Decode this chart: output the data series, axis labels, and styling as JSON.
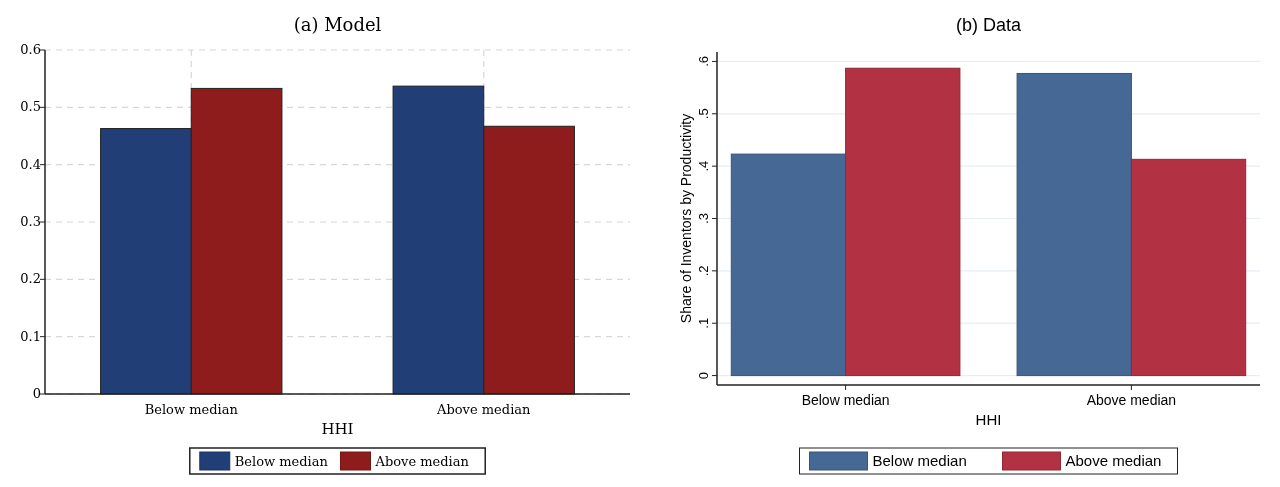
{
  "chart_data": [
    {
      "type": "bar",
      "title": "(a) Model",
      "xlabel": "HHI",
      "categories": [
        "Below median",
        "Above median"
      ],
      "series": [
        {
          "name": "Below median",
          "color": "#213f76",
          "values": [
            0.463,
            0.537
          ]
        },
        {
          "name": "Above median",
          "color": "#8f1c1d",
          "values": [
            0.533,
            0.467
          ]
        }
      ],
      "ylim": [
        0,
        0.6
      ],
      "yticks": [
        {
          "value": 0,
          "label": "0"
        },
        {
          "value": 0.1,
          "label": "0.1"
        },
        {
          "value": 0.2,
          "label": "0.2"
        },
        {
          "value": 0.3,
          "label": "0.3"
        },
        {
          "value": 0.4,
          "label": "0.4"
        },
        {
          "value": 0.5,
          "label": "0.5"
        },
        {
          "value": 0.6,
          "label": "0.6"
        }
      ],
      "grid": true,
      "legend": "bottom"
    },
    {
      "type": "bar",
      "title": "(b) Data",
      "xlabel": "HHI",
      "ylabel": "Share of Inventors by Productivity",
      "categories": [
        "Below median",
        "Above median"
      ],
      "series": [
        {
          "name": "Below median",
          "color": "#466894",
          "values": [
            0.423,
            0.577
          ]
        },
        {
          "name": "Above median",
          "color": "#b23243",
          "values": [
            0.587,
            0.413
          ]
        }
      ],
      "ylim": [
        -0.018,
        0.618
      ],
      "yticks": [
        {
          "value": 0,
          "label": "0"
        },
        {
          "value": 0.1,
          "label": ".1"
        },
        {
          "value": 0.2,
          "label": ".2"
        },
        {
          "value": 0.3,
          "label": ".3"
        },
        {
          "value": 0.4,
          "label": ".4"
        },
        {
          "value": 0.5,
          "label": ".5"
        },
        {
          "value": 0.6,
          "label": ".6"
        }
      ],
      "grid": "y",
      "legend": "bottom"
    }
  ]
}
